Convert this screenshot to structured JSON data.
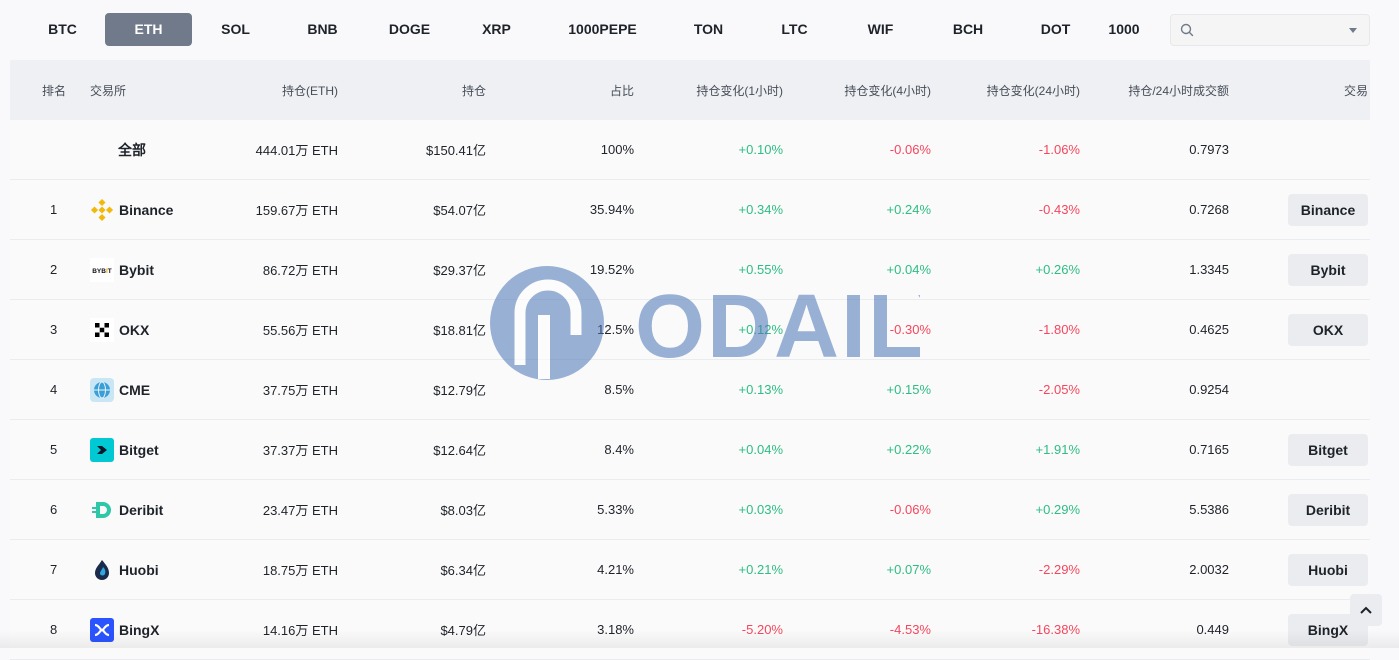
{
  "coin_tabs": [
    "BTC",
    "ETH",
    "SOL",
    "BNB",
    "DOGE",
    "XRP",
    "1000PEPE",
    "TON",
    "LTC",
    "WIF",
    "BCH",
    "DOT",
    "1000"
  ],
  "active_tab": "ETH",
  "search": {
    "placeholder": ""
  },
  "table": {
    "headers": {
      "rank": "排名",
      "exchange": "交易所",
      "holding_eth": "持仓(ETH)",
      "holding": "持仓",
      "share": "占比",
      "change_1h": "持仓变化(1小时)",
      "change_4h": "持仓变化(4小时)",
      "change_24h": "持仓变化(24小时)",
      "ratio": "持仓/24小时成交额",
      "trade": "交易"
    },
    "total": {
      "label": "全部",
      "holding_eth": "444.01万 ETH",
      "holding": "$150.41亿",
      "share": "100%",
      "change_1h": "+0.10%",
      "change_4h": "-0.06%",
      "change_24h": "-1.06%",
      "ratio": "0.7973"
    },
    "rows": [
      {
        "rank": "1",
        "name": "Binance",
        "icon": "binance-icon",
        "holding_eth": "159.67万 ETH",
        "holding": "$54.07亿",
        "share": "35.94%",
        "change_1h": "+0.34%",
        "change_4h": "+0.24%",
        "change_24h": "-0.43%",
        "ratio": "0.7268",
        "trade": "Binance"
      },
      {
        "rank": "2",
        "name": "Bybit",
        "icon": "bybit-icon",
        "holding_eth": "86.72万 ETH",
        "holding": "$29.37亿",
        "share": "19.52%",
        "change_1h": "+0.55%",
        "change_4h": "+0.04%",
        "change_24h": "+0.26%",
        "ratio": "1.3345",
        "trade": "Bybit"
      },
      {
        "rank": "3",
        "name": "OKX",
        "icon": "okx-icon",
        "holding_eth": "55.56万 ETH",
        "holding": "$18.81亿",
        "share": "12.5%",
        "change_1h": "+0.12%",
        "change_4h": "-0.30%",
        "change_24h": "-1.80%",
        "ratio": "0.4625",
        "trade": "OKX"
      },
      {
        "rank": "4",
        "name": "CME",
        "icon": "cme-icon",
        "holding_eth": "37.75万 ETH",
        "holding": "$12.79亿",
        "share": "8.5%",
        "change_1h": "+0.13%",
        "change_4h": "+0.15%",
        "change_24h": "-2.05%",
        "ratio": "0.9254",
        "trade": ""
      },
      {
        "rank": "5",
        "name": "Bitget",
        "icon": "bitget-icon",
        "holding_eth": "37.37万 ETH",
        "holding": "$12.64亿",
        "share": "8.4%",
        "change_1h": "+0.04%",
        "change_4h": "+0.22%",
        "change_24h": "+1.91%",
        "ratio": "0.7165",
        "trade": "Bitget"
      },
      {
        "rank": "6",
        "name": "Deribit",
        "icon": "deribit-icon",
        "holding_eth": "23.47万 ETH",
        "holding": "$8.03亿",
        "share": "5.33%",
        "change_1h": "+0.03%",
        "change_4h": "-0.06%",
        "change_24h": "+0.29%",
        "ratio": "5.5386",
        "trade": "Deribit"
      },
      {
        "rank": "7",
        "name": "Huobi",
        "icon": "huobi-icon",
        "holding_eth": "18.75万 ETH",
        "holding": "$6.34亿",
        "share": "4.21%",
        "change_1h": "+0.21%",
        "change_4h": "+0.07%",
        "change_24h": "-2.29%",
        "ratio": "2.0032",
        "trade": "Huobi"
      },
      {
        "rank": "8",
        "name": "BingX",
        "icon": "bingx-icon",
        "holding_eth": "14.16万 ETH",
        "holding": "$4.79亿",
        "share": "3.18%",
        "change_1h": "-5.20%",
        "change_4h": "-4.53%",
        "change_24h": "-16.38%",
        "ratio": "0.449",
        "trade": "BingX"
      }
    ]
  },
  "watermark": "ODAILY",
  "colors": {
    "up": "#2ebd85",
    "down": "#f6465d",
    "active_tab": "#707a8a"
  }
}
